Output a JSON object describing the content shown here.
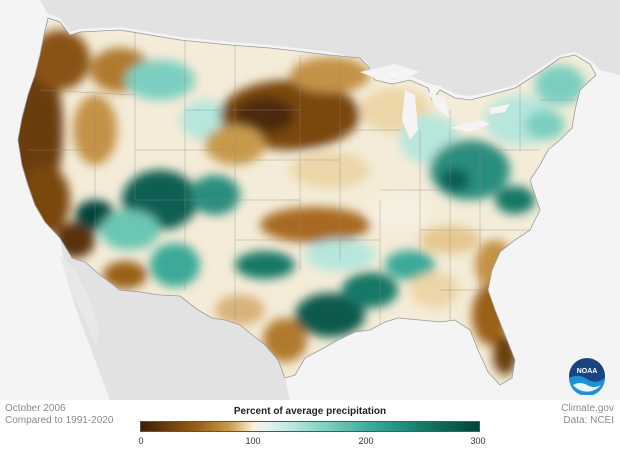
{
  "footer": {
    "date": "October 2006",
    "baseline": "Compared to 1991-2020",
    "source": "Climate.gov",
    "data": "Data: NCEI"
  },
  "legend": {
    "title": "Percent of average precipitation",
    "ticks": [
      "0",
      "100",
      "200",
      "300"
    ]
  },
  "logo": {
    "text": "NOAA"
  },
  "colors": {
    "very_dry": "#3b2005",
    "dry": "#9a6118",
    "light_dry": "#ecd6a7",
    "normal": "#f7f0e0",
    "light_wet": "#b7e6dd",
    "wet": "#3aaa98",
    "very_wet": "#01443b",
    "land_outside": "#dedede",
    "water": "#f4f4f4"
  }
}
